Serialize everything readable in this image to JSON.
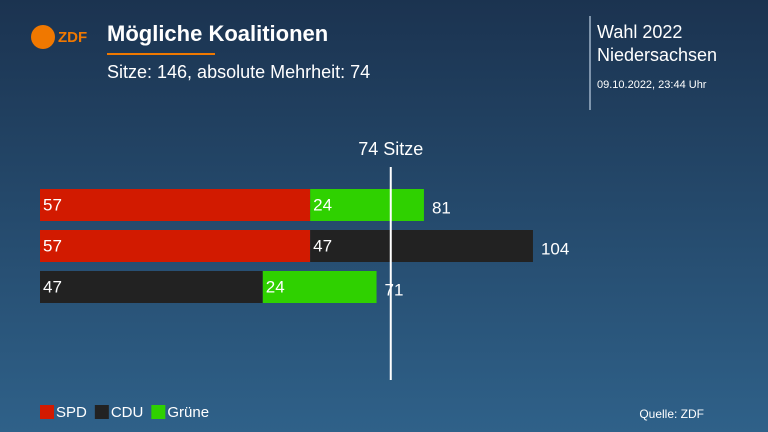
{
  "chart_data": {
    "type": "bar",
    "orientation": "horizontal",
    "stacked": true,
    "logo": "ZDF",
    "title": "Mögliche Koalitionen",
    "subtitle": "Sitze: 146, absolute Mehrheit: 74",
    "election": [
      "Wahl 2022",
      "Niedersachsen"
    ],
    "timestamp": "09.10.2022, 23:44 Uhr",
    "source": "Quelle: ZDF",
    "categories": [
      null,
      null,
      null
    ],
    "series": [
      {
        "name": "SPD",
        "color": "#d21a00",
        "values": [
          57,
          57,
          null
        ]
      },
      {
        "name": "CDU",
        "color": "#222222",
        "values": [
          null,
          47,
          47
        ]
      },
      {
        "name": "Grüne",
        "color": "#2fd100",
        "values": [
          24,
          null,
          24
        ]
      }
    ],
    "totals": [
      81,
      104,
      71
    ],
    "threshold": {
      "value": 74,
      "label": "74 Sitze"
    }
  }
}
